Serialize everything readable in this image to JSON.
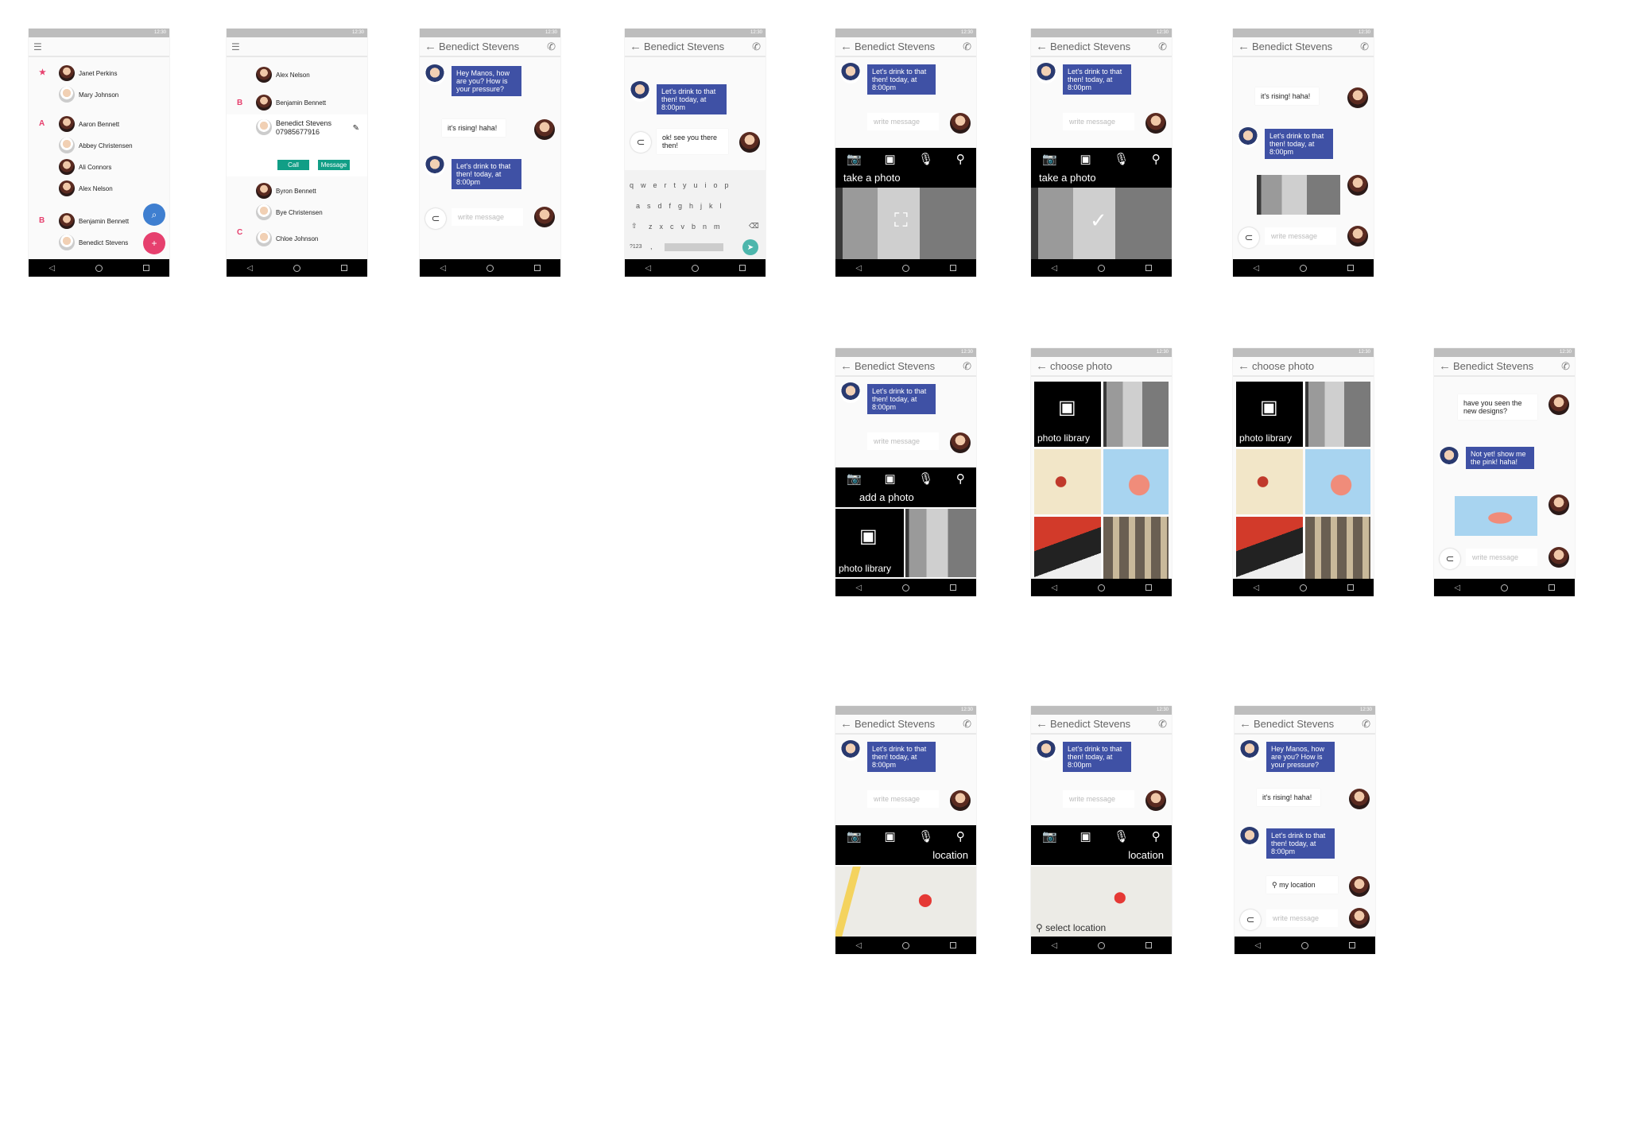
{
  "status": "12:30",
  "title": "Benedict Stevens",
  "choose_title": "choose photo",
  "write_message": "write message",
  "contacts": {
    "star": "★",
    "fav": [
      "Janet Perkins",
      "Mary Johnson"
    ],
    "a_letter": "A",
    "a": [
      "Aaron Bennett",
      "Abbey Christensen",
      "Ali Connors",
      "Alex Nelson"
    ],
    "b_letter": "B",
    "b": [
      "Benjamin Bennett",
      "Benedict Stevens"
    ]
  },
  "contacts2": {
    "alex": "Alex Nelson",
    "b_letter": "B",
    "benjamin": "Benjamin Bennett",
    "benedict": "Benedict Stevens",
    "phone": "07985677916",
    "call": "Call",
    "message": "Message",
    "byron": "Byron Bennett",
    "bye": "Bye Christensen",
    "c_letter": "C",
    "chloe": "Chloe Johnson"
  },
  "msgs": {
    "hey": "Hey Manos, how are you? How is your pressure?",
    "rising": "it's rising! haha!",
    "drink": "Let's drink to that then! today, at 8:00pm",
    "ok": "ok! see you there then!",
    "designs": "have you seen the new designs?",
    "notyet": "Not yet! show me the pink! haha!",
    "myloc": "my location"
  },
  "keyboard": {
    "row1": "qwertyuiop",
    "row2": "asdfghjkl",
    "row3": "zxcvbnm",
    "sym": "?123",
    "comma": ","
  },
  "labels": {
    "take": "take a photo",
    "add": "add a photo",
    "library": "photo library",
    "location": "location",
    "select": "select location"
  },
  "icons": {
    "back": "arrow-back-icon",
    "call": "phone-icon",
    "camera": "camera-icon",
    "image": "image-icon",
    "mic": "mic-icon",
    "pin": "location-pin-icon",
    "clip": "attach-icon"
  }
}
